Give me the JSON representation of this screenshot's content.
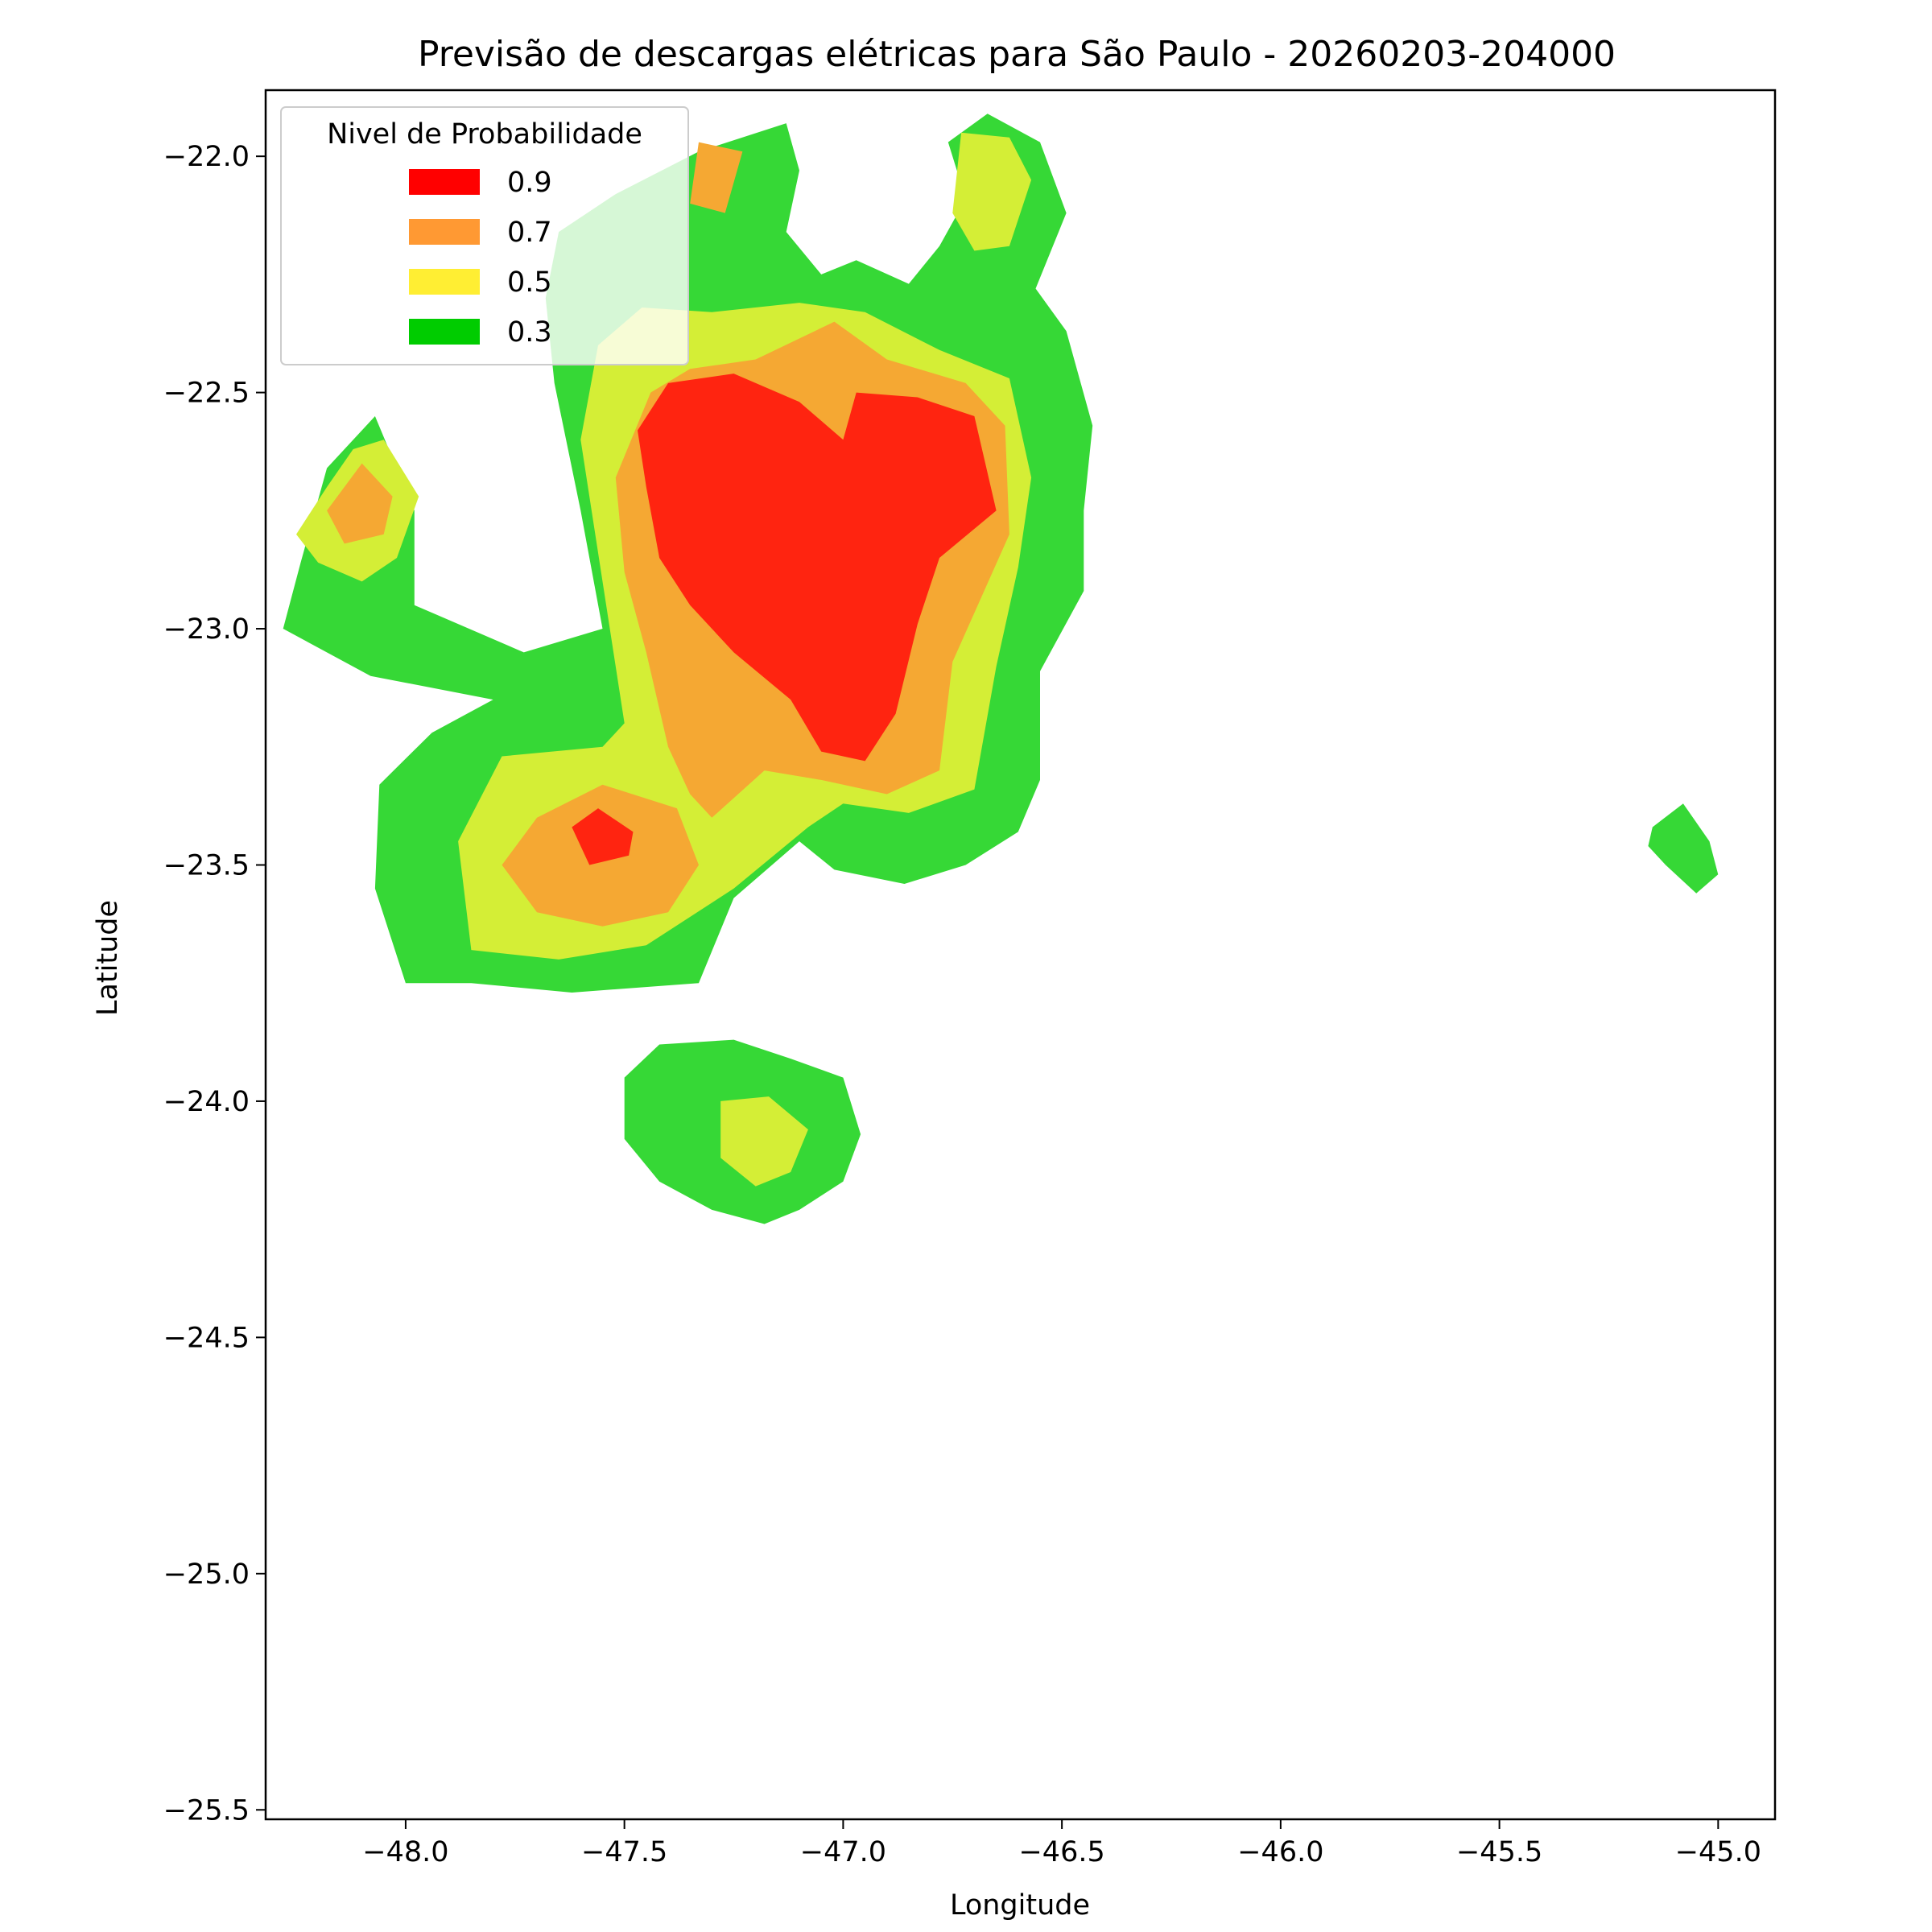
{
  "chart_data": {
    "type": "contour",
    "title": "Previsão de descargas elétricas para São Paulo - 20260203-204000",
    "xlabel": "Longitude",
    "ylabel": "Latitude",
    "xlim": [
      -48.32,
      -44.87
    ],
    "ylim": [
      -25.52,
      -21.86
    ],
    "x_ticks": [
      -48.0,
      -47.5,
      -47.0,
      -46.5,
      -46.0,
      -45.5,
      -45.0
    ],
    "x_tick_labels": [
      "−48.0",
      "−47.5",
      "−47.0",
      "−46.5",
      "−46.0",
      "−45.5",
      "−45.0"
    ],
    "y_ticks": [
      -22.0,
      -22.5,
      -23.0,
      -23.5,
      -24.0,
      -24.5,
      -25.0,
      -25.5
    ],
    "y_tick_labels": [
      "−22.0",
      "−22.5",
      "−23.0",
      "−23.5",
      "−24.0",
      "−24.5",
      "−25.0",
      "−25.5"
    ],
    "grid": false,
    "legend": {
      "title": "Nivel de Probabilidade",
      "placement": "top-left",
      "entries": [
        {
          "label": "0.9",
          "color": "#ff0000"
        },
        {
          "label": "0.7",
          "color": "#ff9933"
        },
        {
          "label": "0.5",
          "color": "#ffee33"
        },
        {
          "label": "0.3",
          "color": "#00cc00"
        }
      ]
    },
    "fill_colors": {
      "0.3": "#36d836",
      "0.5": "#d4ee36",
      "0.7": "#f5a833",
      "0.9": "#ff2410"
    },
    "regions": [
      {
        "level": "0.3",
        "lonlat": [
          [
            -47.65,
            -22.16
          ],
          [
            -47.52,
            -22.08
          ],
          [
            -47.33,
            -21.99
          ],
          [
            -47.13,
            -21.93
          ],
          [
            -47.1,
            -22.03
          ],
          [
            -47.13,
            -22.16
          ],
          [
            -47.05,
            -22.25
          ],
          [
            -46.97,
            -22.22
          ],
          [
            -46.85,
            -22.27
          ],
          [
            -46.78,
            -22.19
          ],
          [
            -46.72,
            -22.09
          ],
          [
            -46.76,
            -21.97
          ],
          [
            -46.67,
            -21.91
          ],
          [
            -46.55,
            -21.97
          ],
          [
            -46.49,
            -22.12
          ],
          [
            -46.56,
            -22.28
          ],
          [
            -46.49,
            -22.37
          ],
          [
            -46.43,
            -22.57
          ],
          [
            -46.45,
            -22.75
          ],
          [
            -46.45,
            -22.92
          ],
          [
            -46.55,
            -23.09
          ],
          [
            -46.55,
            -23.32
          ],
          [
            -46.6,
            -23.43
          ],
          [
            -46.72,
            -23.5
          ],
          [
            -46.86,
            -23.54
          ],
          [
            -47.02,
            -23.51
          ],
          [
            -47.1,
            -23.45
          ],
          [
            -47.25,
            -23.57
          ],
          [
            -47.33,
            -23.75
          ],
          [
            -47.62,
            -23.77
          ],
          [
            -47.85,
            -23.75
          ],
          [
            -48.0,
            -23.75
          ],
          [
            -48.07,
            -23.55
          ],
          [
            -48.06,
            -23.33
          ],
          [
            -47.94,
            -23.22
          ],
          [
            -47.8,
            -23.15
          ],
          [
            -48.08,
            -23.1
          ],
          [
            -48.28,
            -23.0
          ],
          [
            -48.24,
            -22.86
          ],
          [
            -48.18,
            -22.66
          ],
          [
            -48.07,
            -22.55
          ],
          [
            -47.98,
            -22.75
          ],
          [
            -47.98,
            -22.95
          ],
          [
            -47.73,
            -23.05
          ],
          [
            -47.55,
            -23.0
          ],
          [
            -47.6,
            -22.75
          ],
          [
            -47.66,
            -22.48
          ],
          [
            -47.68,
            -22.3
          ]
        ]
      },
      {
        "level": "0.3",
        "lonlat": [
          [
            -47.5,
            -23.95
          ],
          [
            -47.42,
            -23.88
          ],
          [
            -47.25,
            -23.87
          ],
          [
            -47.12,
            -23.91
          ],
          [
            -47.0,
            -23.95
          ],
          [
            -46.96,
            -24.07
          ],
          [
            -47.0,
            -24.17
          ],
          [
            -47.1,
            -24.23
          ],
          [
            -47.18,
            -24.26
          ],
          [
            -47.3,
            -24.23
          ],
          [
            -47.42,
            -24.17
          ],
          [
            -47.5,
            -24.08
          ]
        ]
      },
      {
        "level": "0.3",
        "lonlat": [
          [
            -45.15,
            -23.42
          ],
          [
            -45.08,
            -23.37
          ],
          [
            -45.02,
            -23.45
          ],
          [
            -45.0,
            -23.52
          ],
          [
            -45.05,
            -23.56
          ],
          [
            -45.12,
            -23.5
          ],
          [
            -45.16,
            -23.46
          ]
        ]
      },
      {
        "level": "0.5",
        "lonlat": [
          [
            -47.56,
            -22.4
          ],
          [
            -47.46,
            -22.32
          ],
          [
            -47.3,
            -22.33
          ],
          [
            -47.1,
            -22.31
          ],
          [
            -46.95,
            -22.33
          ],
          [
            -46.78,
            -22.41
          ],
          [
            -46.62,
            -22.47
          ],
          [
            -46.57,
            -22.68
          ],
          [
            -46.6,
            -22.87
          ],
          [
            -46.65,
            -23.08
          ],
          [
            -46.7,
            -23.34
          ],
          [
            -46.85,
            -23.39
          ],
          [
            -47.0,
            -23.37
          ],
          [
            -47.08,
            -23.42
          ],
          [
            -47.25,
            -23.55
          ],
          [
            -47.45,
            -23.67
          ],
          [
            -47.65,
            -23.7
          ],
          [
            -47.85,
            -23.68
          ],
          [
            -47.88,
            -23.45
          ],
          [
            -47.78,
            -23.27
          ],
          [
            -47.55,
            -23.25
          ],
          [
            -47.5,
            -23.2
          ],
          [
            -47.55,
            -22.9
          ],
          [
            -47.6,
            -22.6
          ]
        ]
      },
      {
        "level": "0.5",
        "lonlat": [
          [
            -46.73,
            -21.95
          ],
          [
            -46.62,
            -21.96
          ],
          [
            -46.57,
            -22.05
          ],
          [
            -46.62,
            -22.19
          ],
          [
            -46.7,
            -22.2
          ],
          [
            -46.75,
            -22.12
          ]
        ]
      },
      {
        "level": "0.5",
        "lonlat": [
          [
            -48.12,
            -22.62
          ],
          [
            -48.05,
            -22.6
          ],
          [
            -47.97,
            -22.72
          ],
          [
            -48.02,
            -22.85
          ],
          [
            -48.1,
            -22.9
          ],
          [
            -48.2,
            -22.86
          ],
          [
            -48.25,
            -22.8
          ],
          [
            -48.18,
            -22.7
          ]
        ]
      },
      {
        "level": "0.5",
        "lonlat": [
          [
            -47.28,
            -24.0
          ],
          [
            -47.17,
            -23.99
          ],
          [
            -47.08,
            -24.06
          ],
          [
            -47.12,
            -24.15
          ],
          [
            -47.2,
            -24.18
          ],
          [
            -47.28,
            -24.12
          ]
        ]
      },
      {
        "level": "0.7",
        "lonlat": [
          [
            -47.44,
            -22.5
          ],
          [
            -47.35,
            -22.45
          ],
          [
            -47.2,
            -22.43
          ],
          [
            -47.02,
            -22.35
          ],
          [
            -46.9,
            -22.43
          ],
          [
            -46.72,
            -22.48
          ],
          [
            -46.63,
            -22.57
          ],
          [
            -46.62,
            -22.8
          ],
          [
            -46.75,
            -23.07
          ],
          [
            -46.78,
            -23.3
          ],
          [
            -46.9,
            -23.35
          ],
          [
            -47.05,
            -23.32
          ],
          [
            -47.18,
            -23.3
          ],
          [
            -47.3,
            -23.4
          ],
          [
            -47.35,
            -23.35
          ],
          [
            -47.4,
            -23.25
          ],
          [
            -47.45,
            -23.05
          ],
          [
            -47.5,
            -22.88
          ],
          [
            -47.52,
            -22.68
          ]
        ]
      },
      {
        "level": "0.7",
        "lonlat": [
          [
            -47.55,
            -23.33
          ],
          [
            -47.7,
            -23.4
          ],
          [
            -47.78,
            -23.5
          ],
          [
            -47.7,
            -23.6
          ],
          [
            -47.55,
            -23.63
          ],
          [
            -47.4,
            -23.6
          ],
          [
            -47.33,
            -23.5
          ],
          [
            -47.38,
            -23.38
          ]
        ]
      },
      {
        "level": "0.7",
        "lonlat": [
          [
            -48.1,
            -22.65
          ],
          [
            -48.03,
            -22.72
          ],
          [
            -48.05,
            -22.8
          ],
          [
            -48.14,
            -22.82
          ],
          [
            -48.18,
            -22.75
          ]
        ]
      },
      {
        "level": "0.7",
        "lonlat": [
          [
            -47.33,
            -21.97
          ],
          [
            -47.23,
            -21.99
          ],
          [
            -47.27,
            -22.12
          ],
          [
            -47.35,
            -22.1
          ]
        ]
      },
      {
        "level": "0.9",
        "lonlat": [
          [
            -47.47,
            -22.58
          ],
          [
            -47.4,
            -22.48
          ],
          [
            -47.25,
            -22.46
          ],
          [
            -47.1,
            -22.52
          ],
          [
            -47.0,
            -22.6
          ],
          [
            -46.97,
            -22.5
          ],
          [
            -46.83,
            -22.51
          ],
          [
            -46.7,
            -22.55
          ],
          [
            -46.65,
            -22.75
          ],
          [
            -46.78,
            -22.85
          ],
          [
            -46.83,
            -22.99
          ],
          [
            -46.88,
            -23.18
          ],
          [
            -46.95,
            -23.28
          ],
          [
            -47.05,
            -23.26
          ],
          [
            -47.12,
            -23.15
          ],
          [
            -47.25,
            -23.05
          ],
          [
            -47.35,
            -22.95
          ],
          [
            -47.42,
            -22.85
          ],
          [
            -47.45,
            -22.7
          ]
        ]
      },
      {
        "level": "0.9",
        "lonlat": [
          [
            -47.62,
            -23.42
          ],
          [
            -47.56,
            -23.38
          ],
          [
            -47.48,
            -23.43
          ],
          [
            -47.49,
            -23.48
          ],
          [
            -47.58,
            -23.5
          ]
        ]
      }
    ]
  }
}
